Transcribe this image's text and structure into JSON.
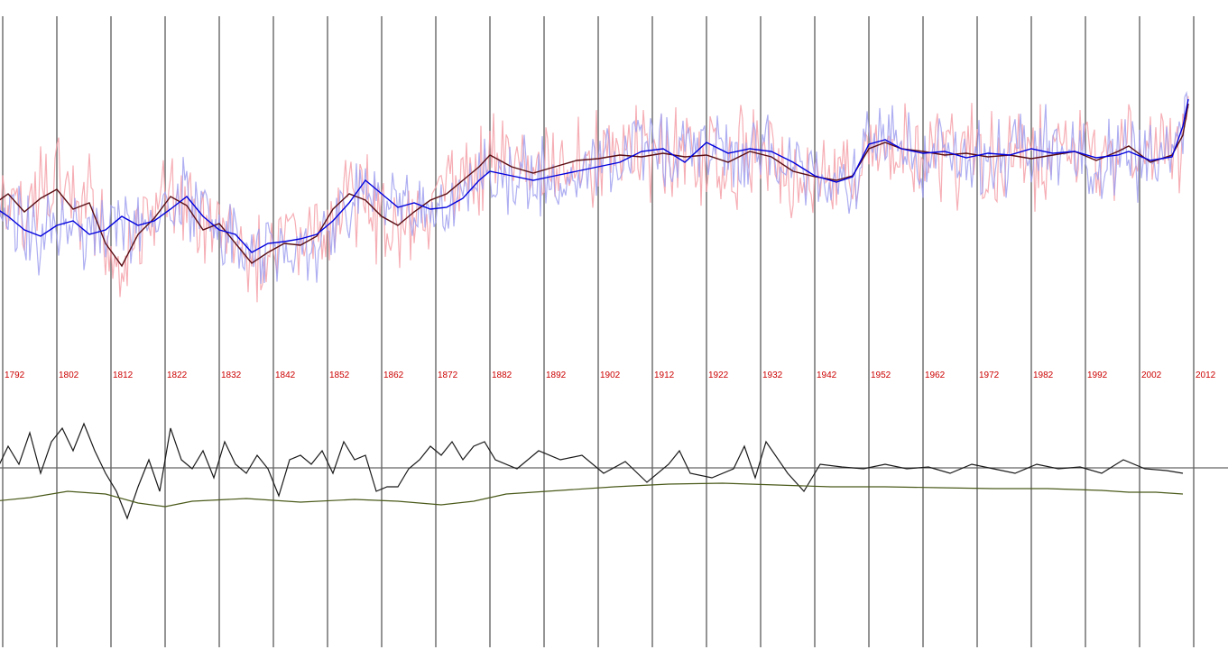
{
  "chart_data": {
    "type": "line",
    "title": "",
    "xlabel": "",
    "ylabel": "",
    "x_range": [
      1787,
      2014
    ],
    "x_ticks": [
      1792,
      1802,
      1812,
      1822,
      1832,
      1842,
      1852,
      1862,
      1872,
      1882,
      1892,
      1902,
      1912,
      1922,
      1932,
      1942,
      1952,
      1962,
      1972,
      1982,
      1992,
      2002,
      2012
    ],
    "grid": "vertical lines at each labelled decade",
    "colors": {
      "red_raw": "#f4a0a8",
      "blue_raw": "#a0a0f0",
      "red_smooth": "#5a0f14",
      "blue_smooth": "#0000dd",
      "difference": "#1a1a1a",
      "trend": "#4a5a1a",
      "grid": "#666666",
      "tick_label": "#cc0000"
    },
    "upper_panel_series": [
      {
        "key": "red_smooth",
        "points": [
          [
            1787,
            235
          ],
          [
            1790,
            228
          ],
          [
            1793,
            215
          ],
          [
            1796,
            235
          ],
          [
            1799,
            220
          ],
          [
            1802,
            210
          ],
          [
            1805,
            232
          ],
          [
            1808,
            225
          ],
          [
            1811,
            270
          ],
          [
            1814,
            295
          ],
          [
            1817,
            260
          ],
          [
            1820,
            242
          ],
          [
            1823,
            218
          ],
          [
            1826,
            228
          ],
          [
            1829,
            255
          ],
          [
            1832,
            248
          ],
          [
            1835,
            270
          ],
          [
            1838,
            292
          ],
          [
            1841,
            280
          ],
          [
            1844,
            270
          ],
          [
            1847,
            272
          ],
          [
            1850,
            262
          ],
          [
            1853,
            232
          ],
          [
            1856,
            215
          ],
          [
            1859,
            222
          ],
          [
            1862,
            240
          ],
          [
            1865,
            250
          ],
          [
            1868,
            235
          ],
          [
            1871,
            222
          ],
          [
            1874,
            215
          ],
          [
            1877,
            200
          ],
          [
            1880,
            185
          ],
          [
            1882,
            172
          ],
          [
            1886,
            185
          ],
          [
            1890,
            192
          ],
          [
            1894,
            185
          ],
          [
            1898,
            178
          ],
          [
            1902,
            176
          ],
          [
            1906,
            172
          ],
          [
            1910,
            174
          ],
          [
            1914,
            170
          ],
          [
            1918,
            174
          ],
          [
            1922,
            172
          ],
          [
            1926,
            180
          ],
          [
            1930,
            168
          ],
          [
            1934,
            174
          ],
          [
            1938,
            190
          ],
          [
            1942,
            196
          ],
          [
            1946,
            200
          ],
          [
            1949,
            195
          ],
          [
            1952,
            165
          ],
          [
            1955,
            158
          ],
          [
            1958,
            165
          ],
          [
            1962,
            168
          ],
          [
            1966,
            172
          ],
          [
            1970,
            170
          ],
          [
            1974,
            174
          ],
          [
            1978,
            172
          ],
          [
            1982,
            176
          ],
          [
            1986,
            172
          ],
          [
            1990,
            168
          ],
          [
            1994,
            178
          ],
          [
            1998,
            168
          ],
          [
            2000,
            162
          ],
          [
            2004,
            180
          ],
          [
            2008,
            172
          ],
          [
            2010,
            150
          ],
          [
            2011,
            115
          ]
        ]
      },
      {
        "key": "blue_smooth",
        "points": [
          [
            1787,
            215
          ],
          [
            1790,
            228
          ],
          [
            1793,
            240
          ],
          [
            1796,
            255
          ],
          [
            1799,
            262
          ],
          [
            1802,
            250
          ],
          [
            1805,
            245
          ],
          [
            1808,
            260
          ],
          [
            1811,
            255
          ],
          [
            1814,
            240
          ],
          [
            1817,
            250
          ],
          [
            1820,
            245
          ],
          [
            1823,
            232
          ],
          [
            1826,
            218
          ],
          [
            1829,
            240
          ],
          [
            1832,
            255
          ],
          [
            1835,
            260
          ],
          [
            1838,
            280
          ],
          [
            1841,
            270
          ],
          [
            1844,
            268
          ],
          [
            1847,
            265
          ],
          [
            1850,
            260
          ],
          [
            1853,
            245
          ],
          [
            1856,
            225
          ],
          [
            1859,
            200
          ],
          [
            1862,
            215
          ],
          [
            1865,
            230
          ],
          [
            1868,
            225
          ],
          [
            1871,
            232
          ],
          [
            1874,
            230
          ],
          [
            1877,
            220
          ],
          [
            1880,
            200
          ],
          [
            1882,
            190
          ],
          [
            1886,
            195
          ],
          [
            1890,
            200
          ],
          [
            1894,
            195
          ],
          [
            1898,
            190
          ],
          [
            1902,
            185
          ],
          [
            1906,
            180
          ],
          [
            1910,
            168
          ],
          [
            1914,
            165
          ],
          [
            1918,
            180
          ],
          [
            1922,
            158
          ],
          [
            1926,
            170
          ],
          [
            1930,
            165
          ],
          [
            1934,
            168
          ],
          [
            1938,
            180
          ],
          [
            1942,
            195
          ],
          [
            1946,
            202
          ],
          [
            1949,
            196
          ],
          [
            1952,
            160
          ],
          [
            1955,
            155
          ],
          [
            1958,
            165
          ],
          [
            1962,
            170
          ],
          [
            1966,
            168
          ],
          [
            1970,
            175
          ],
          [
            1974,
            170
          ],
          [
            1978,
            172
          ],
          [
            1982,
            165
          ],
          [
            1986,
            170
          ],
          [
            1990,
            168
          ],
          [
            1994,
            175
          ],
          [
            1998,
            172
          ],
          [
            2000,
            168
          ],
          [
            2004,
            178
          ],
          [
            2008,
            174
          ],
          [
            2010,
            140
          ],
          [
            2011,
            110
          ]
        ]
      }
    ],
    "lower_panel_series": [
      {
        "key": "difference",
        "points": [
          [
            1787,
            540
          ],
          [
            1789,
            490
          ],
          [
            1791,
            520
          ],
          [
            1793,
            495
          ],
          [
            1795,
            515
          ],
          [
            1797,
            480
          ],
          [
            1799,
            525
          ],
          [
            1801,
            490
          ],
          [
            1803,
            475
          ],
          [
            1805,
            500
          ],
          [
            1807,
            470
          ],
          [
            1809,
            500
          ],
          [
            1811,
            525
          ],
          [
            1813,
            545
          ],
          [
            1815,
            575
          ],
          [
            1817,
            540
          ],
          [
            1819,
            510
          ],
          [
            1821,
            545
          ],
          [
            1823,
            475
          ],
          [
            1825,
            510
          ],
          [
            1827,
            520
          ],
          [
            1829,
            500
          ],
          [
            1831,
            530
          ],
          [
            1833,
            490
          ],
          [
            1835,
            515
          ],
          [
            1837,
            525
          ],
          [
            1839,
            505
          ],
          [
            1841,
            520
          ],
          [
            1843,
            550
          ],
          [
            1845,
            510
          ],
          [
            1847,
            505
          ],
          [
            1849,
            515
          ],
          [
            1851,
            500
          ],
          [
            1853,
            525
          ],
          [
            1855,
            490
          ],
          [
            1857,
            510
          ],
          [
            1859,
            505
          ],
          [
            1861,
            545
          ],
          [
            1863,
            540
          ],
          [
            1865,
            540
          ],
          [
            1867,
            520
          ],
          [
            1869,
            510
          ],
          [
            1871,
            495
          ],
          [
            1873,
            505
          ],
          [
            1875,
            490
          ],
          [
            1877,
            510
          ],
          [
            1879,
            495
          ],
          [
            1881,
            490
          ],
          [
            1883,
            510
          ],
          [
            1887,
            520
          ],
          [
            1891,
            500
          ],
          [
            1895,
            510
          ],
          [
            1899,
            505
          ],
          [
            1903,
            525
          ],
          [
            1907,
            512
          ],
          [
            1911,
            535
          ],
          [
            1915,
            515
          ],
          [
            1917,
            500
          ],
          [
            1919,
            525
          ],
          [
            1923,
            530
          ],
          [
            1927,
            520
          ],
          [
            1929,
            495
          ],
          [
            1931,
            530
          ],
          [
            1933,
            490
          ],
          [
            1937,
            525
          ],
          [
            1940,
            545
          ],
          [
            1943,
            515
          ],
          [
            1947,
            518
          ],
          [
            1951,
            520
          ],
          [
            1955,
            515
          ],
          [
            1959,
            520
          ],
          [
            1963,
            518
          ],
          [
            1967,
            525
          ],
          [
            1971,
            515
          ],
          [
            1975,
            520
          ],
          [
            1979,
            525
          ],
          [
            1983,
            515
          ],
          [
            1987,
            520
          ],
          [
            1991,
            518
          ],
          [
            1995,
            525
          ],
          [
            1999,
            510
          ],
          [
            2003,
            520
          ],
          [
            2007,
            522
          ],
          [
            2010,
            525
          ]
        ]
      },
      {
        "key": "trend",
        "points": [
          [
            1787,
            558
          ],
          [
            1797,
            552
          ],
          [
            1804,
            545
          ],
          [
            1811,
            548
          ],
          [
            1817,
            558
          ],
          [
            1822,
            562
          ],
          [
            1827,
            556
          ],
          [
            1837,
            553
          ],
          [
            1847,
            557
          ],
          [
            1857,
            554
          ],
          [
            1865,
            556
          ],
          [
            1873,
            560
          ],
          [
            1879,
            556
          ],
          [
            1885,
            548
          ],
          [
            1895,
            544
          ],
          [
            1905,
            540
          ],
          [
            1915,
            537
          ],
          [
            1925,
            536
          ],
          [
            1935,
            538
          ],
          [
            1945,
            540
          ],
          [
            1955,
            540
          ],
          [
            1965,
            541
          ],
          [
            1975,
            542
          ],
          [
            1985,
            542
          ],
          [
            1995,
            544
          ],
          [
            2000,
            546
          ],
          [
            2005,
            546
          ],
          [
            2010,
            548
          ]
        ]
      }
    ]
  }
}
